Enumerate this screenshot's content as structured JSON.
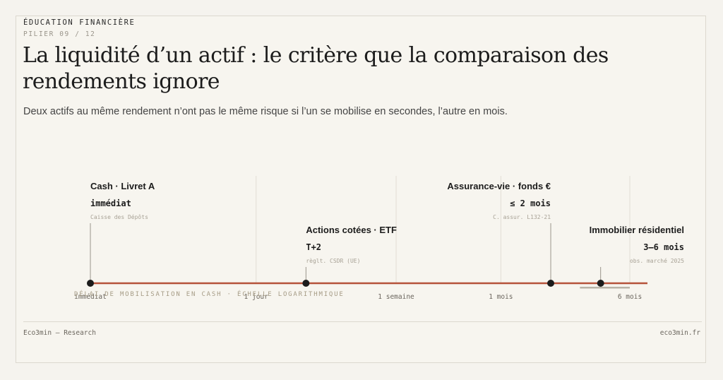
{
  "header": {
    "eyebrow": "ÉDUCATION FINANCIÈRE",
    "pillar": "PILIER 09 / 12",
    "title": "La liquidité d’un actif : le critère que la comparaison des rendements ignore",
    "subtitle": "Deux actifs au même rendement n’ont pas le même risque si l’un se mobilise en secondes, l’autre en mois."
  },
  "colors": {
    "accent": "#b5533a",
    "point": "#1c1c1c",
    "range_bar": "#b9b3a7"
  },
  "chart_data": {
    "type": "scatter",
    "axis_scale": "log",
    "x_unit": "days",
    "xlim_days": [
      0.1,
      230
    ],
    "axis_label": "DÉLAI DE MOBILISATION EN CASH · ÉCHELLE LOGARITHMIQUE",
    "ticks": [
      {
        "label": "immédiat",
        "days": 0.1,
        "gridline": false
      },
      {
        "label": "1 jour",
        "days": 1,
        "gridline": true
      },
      {
        "label": "1 semaine",
        "days": 7,
        "gridline": true
      },
      {
        "label": "1 mois",
        "days": 30,
        "gridline": true
      },
      {
        "label": "6 mois",
        "days": 180,
        "gridline": true
      }
    ],
    "points": [
      {
        "name": "Cash · Livret A",
        "delay": "immédiat",
        "source": "Caisse des Dépôts",
        "days": 0.1,
        "row": 0,
        "align": "start"
      },
      {
        "name": "Actions cotées · ETF",
        "delay": "T+2",
        "source": "règlt. CSDR (UE)",
        "days": 2,
        "row": 1,
        "align": "start"
      },
      {
        "name": "Assurance-vie · fonds €",
        "delay": "≤ 2 mois",
        "source": "C. assur. L132-21",
        "days": 60,
        "row": 0,
        "align": "end"
      },
      {
        "name": "Immobilier résidentiel",
        "delay": "3–6 mois",
        "source": "obs. marché 2025",
        "days": 120,
        "row": 1,
        "align": "end",
        "range_days": [
          90,
          180
        ]
      }
    ]
  },
  "footer": {
    "left": "Eco3min — Research",
    "right": "eco3min.fr"
  }
}
